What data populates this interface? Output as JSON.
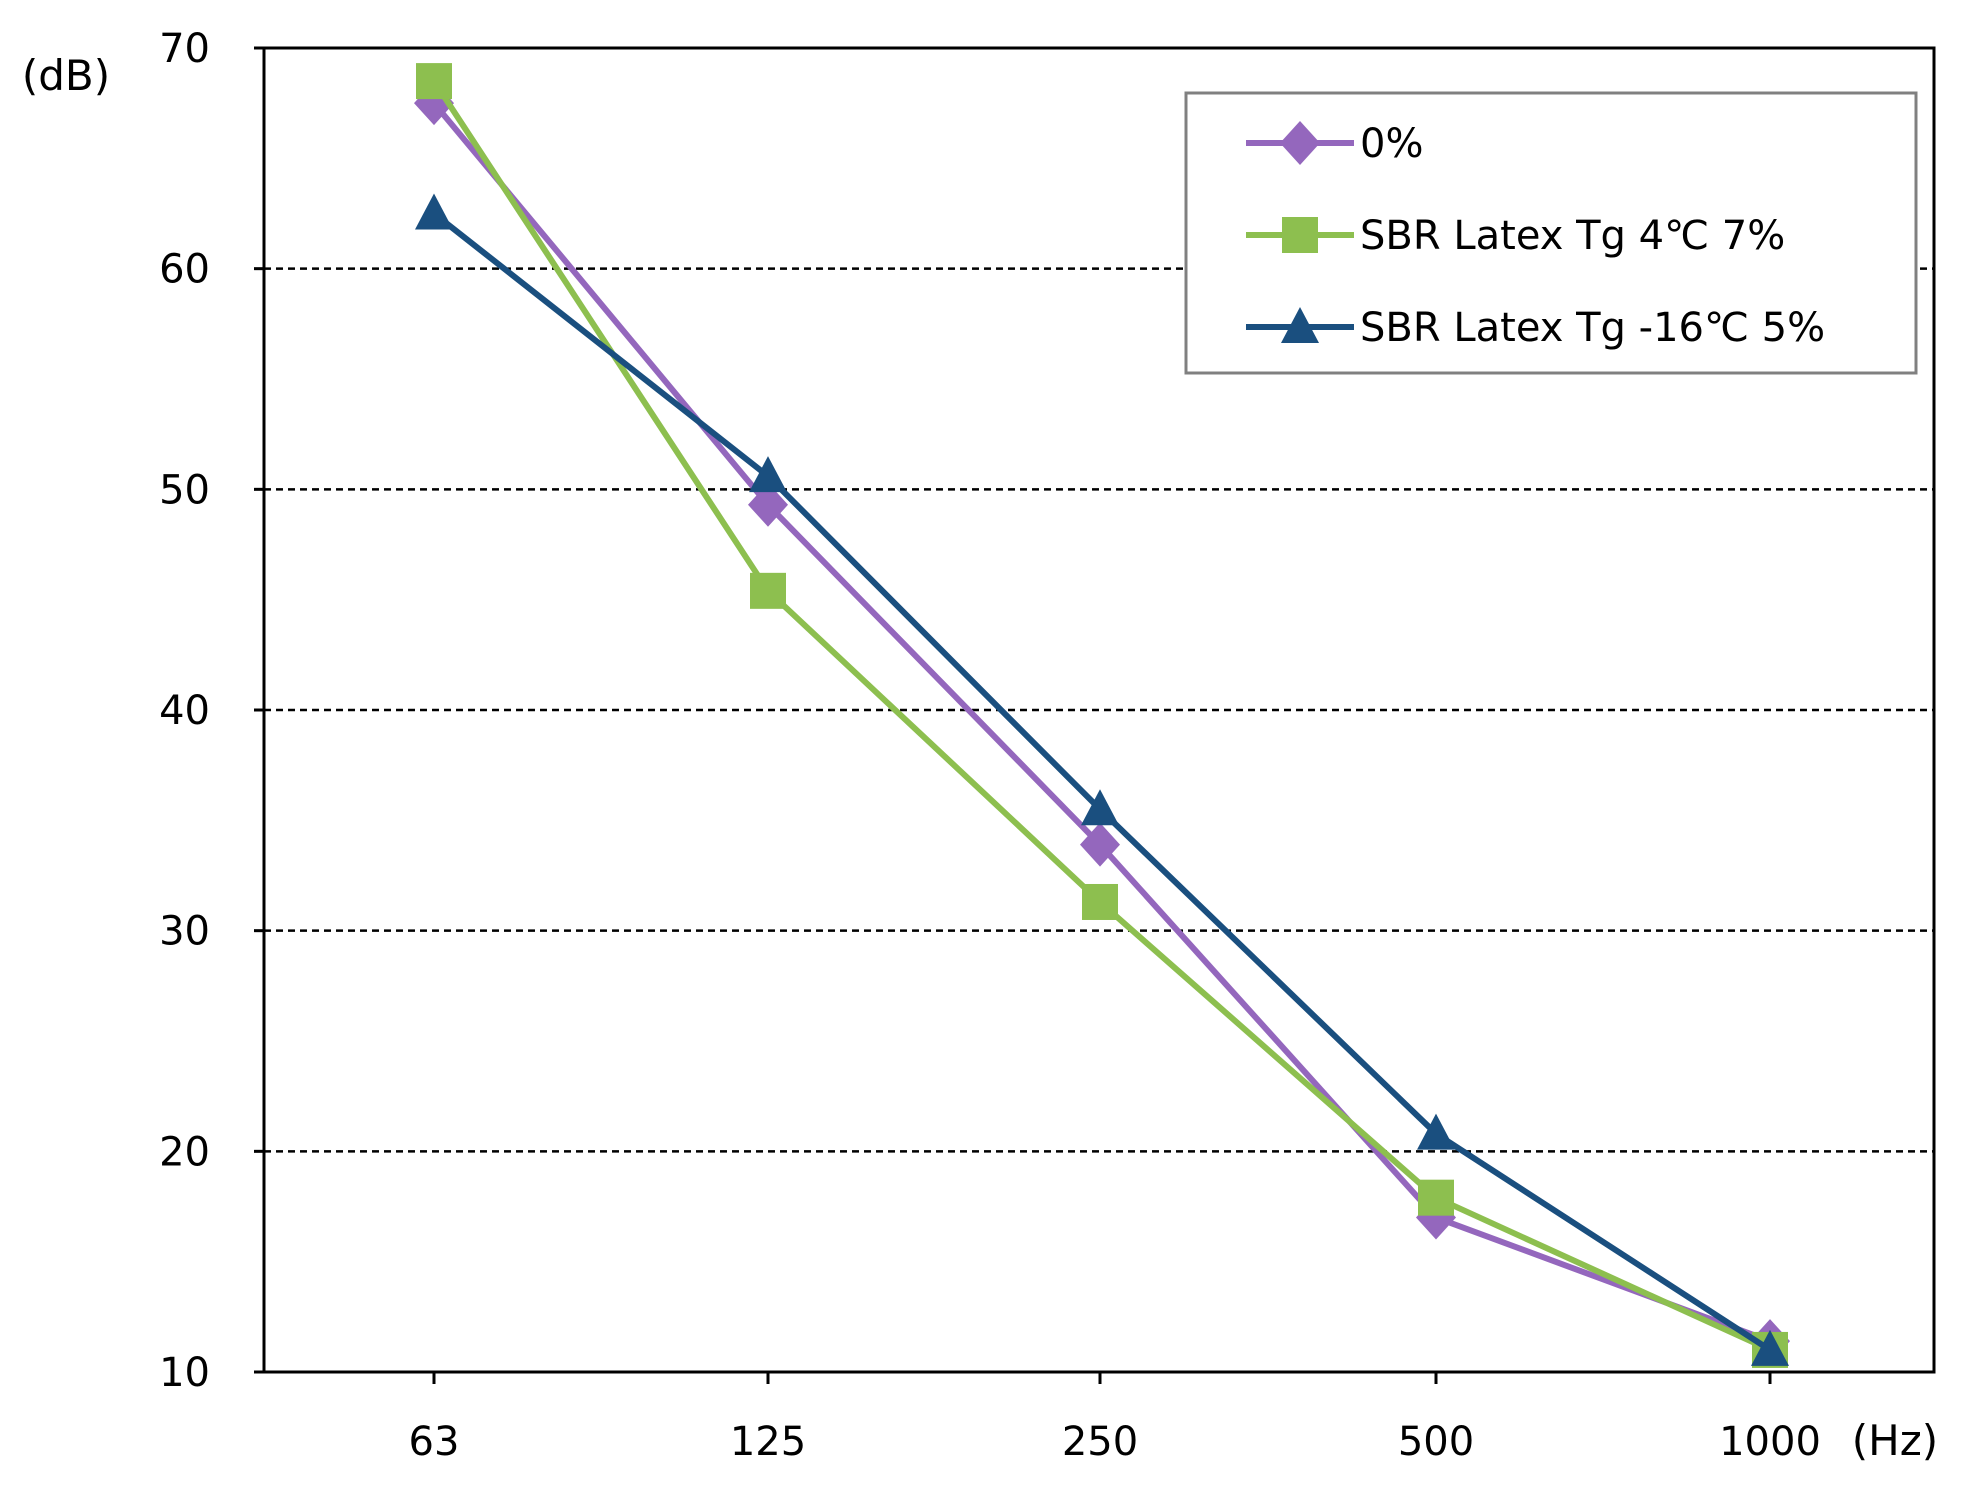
{
  "chart_data": {
    "type": "line",
    "title": "",
    "xlabel": "(Hz)",
    "ylabel": "(dB)",
    "categories": [
      "63",
      "125",
      "250",
      "500",
      "1000"
    ],
    "ylim": [
      10,
      70
    ],
    "yticks": [
      "10",
      "20",
      "30",
      "40",
      "50",
      "60",
      "70"
    ],
    "grid": true,
    "legend_position": "top-right",
    "series": [
      {
        "name": "0%",
        "values": [
          67.5,
          49.3,
          33.9,
          17.0,
          11.4
        ],
        "color": "#9467bd",
        "marker": "diamond"
      },
      {
        "name": "SBR Latex Tg 4℃  7%",
        "values": [
          68.5,
          45.4,
          31.3,
          17.9,
          11.0
        ],
        "color": "#8dbf4f",
        "marker": "square"
      },
      {
        "name": "SBR Latex Tg -16℃  5%",
        "values": [
          62.5,
          50.6,
          35.5,
          20.8,
          11.0
        ],
        "color": "#1a4f7f",
        "marker": "triangle"
      }
    ]
  }
}
